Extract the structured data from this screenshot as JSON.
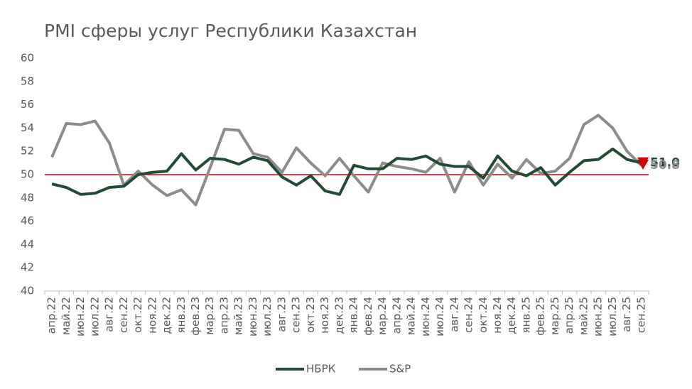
{
  "chart_data": {
    "type": "line",
    "title": "PMI сферы услуг Республики Казахстан",
    "categories": [
      "апр.22",
      "май.22",
      "июн.22",
      "июл.22",
      "авг.22",
      "сен.22",
      "окт.22",
      "ноя.22",
      "дек.22",
      "янв.23",
      "фев.23",
      "мар.23",
      "апр.23",
      "май.23",
      "июн.23",
      "июл.23",
      "авг.23",
      "сен.23",
      "окт.23",
      "ноя.23",
      "дек.23",
      "янв.24",
      "фев.24",
      "мар.24",
      "апр.24",
      "май.24",
      "июн.24",
      "июл.24",
      "авг.24",
      "сен.24",
      "окт.24",
      "ноя.24",
      "дек.24",
      "янв.25",
      "фев.25",
      "мар.25",
      "апр.25",
      "май.25",
      "июн.25",
      "июл.25",
      "авг.25",
      "сен.25"
    ],
    "series": [
      {
        "name": "НБРК",
        "color": "#234a33",
        "values": [
          49.2,
          48.9,
          48.3,
          48.4,
          48.9,
          49.0,
          50.0,
          50.2,
          50.3,
          51.8,
          50.4,
          51.4,
          51.3,
          50.9,
          51.5,
          51.2,
          49.8,
          49.1,
          49.9,
          48.6,
          48.3,
          50.8,
          50.5,
          50.5,
          51.4,
          51.3,
          51.6,
          50.9,
          50.7,
          50.7,
          49.7,
          51.6,
          50.3,
          49.9,
          50.6,
          49.1,
          50.2,
          51.2,
          51.3,
          52.2,
          51.3,
          51.0
        ]
      },
      {
        "name": "S&P",
        "color": "#8c8c8c",
        "values": [
          51.5,
          54.4,
          54.3,
          54.6,
          52.7,
          49.1,
          50.3,
          49.1,
          48.2,
          48.7,
          47.4,
          50.6,
          53.9,
          53.8,
          51.8,
          51.5,
          50.2,
          52.3,
          51.0,
          49.9,
          51.4,
          49.9,
          48.5,
          51.0,
          50.7,
          50.5,
          50.2,
          51.4,
          48.5,
          51.1,
          49.1,
          50.9,
          49.7,
          51.3,
          50.1,
          50.3,
          51.4,
          54.3,
          55.1,
          54.0,
          52.0,
          50.8
        ]
      }
    ],
    "annotations": [
      {
        "text": "51.0",
        "value": 51.0,
        "series": 0
      },
      {
        "text": "50.8",
        "value": 50.8,
        "series": 1
      }
    ],
    "reference_line": {
      "value": 50,
      "color": "#d00000"
    },
    "ylim": [
      40,
      60
    ],
    "yticks": [
      40,
      42,
      44,
      46,
      48,
      50,
      52,
      54,
      56,
      58,
      60
    ],
    "grid": false,
    "legend": "bottom"
  }
}
